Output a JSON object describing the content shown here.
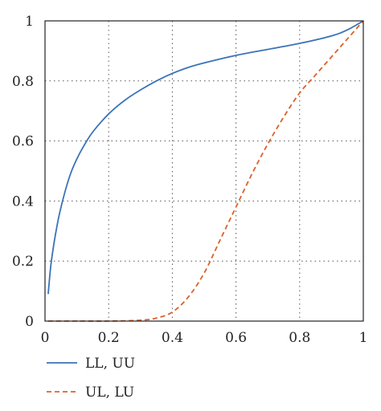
{
  "chart_data": {
    "type": "line",
    "title": "",
    "xlabel": "",
    "ylabel": "",
    "xlim": [
      0,
      1
    ],
    "ylim": [
      0,
      1
    ],
    "grid": true,
    "legend_position": "bottom-left",
    "x_ticks": [
      "0",
      "0.2",
      "0.4",
      "0.6",
      "0.8",
      "1"
    ],
    "y_ticks": [
      "0",
      "0.2",
      "0.4",
      "0.6",
      "0.8",
      "1"
    ],
    "series": [
      {
        "name": "LL, UU",
        "style": "solid",
        "color": "#3a73b8",
        "x": [
          0.01,
          0.02,
          0.04,
          0.06,
          0.08,
          0.1,
          0.12,
          0.15,
          0.2,
          0.25,
          0.3,
          0.35,
          0.4,
          0.45,
          0.5,
          0.6,
          0.7,
          0.8,
          0.9,
          0.95,
          1.0
        ],
        "y": [
          0.09,
          0.2,
          0.33,
          0.42,
          0.49,
          0.54,
          0.58,
          0.63,
          0.69,
          0.735,
          0.77,
          0.8,
          0.825,
          0.845,
          0.86,
          0.885,
          0.905,
          0.925,
          0.95,
          0.97,
          1.0
        ]
      },
      {
        "name": "UL, LU",
        "style": "dashed",
        "color": "#d9622b",
        "x": [
          0.01,
          0.1,
          0.2,
          0.3,
          0.35,
          0.4,
          0.45,
          0.5,
          0.55,
          0.6,
          0.65,
          0.7,
          0.75,
          0.8,
          0.85,
          0.9,
          0.95,
          1.0
        ],
        "y": [
          0.0,
          0.0,
          0.0,
          0.003,
          0.01,
          0.03,
          0.08,
          0.16,
          0.27,
          0.38,
          0.49,
          0.59,
          0.68,
          0.76,
          0.82,
          0.88,
          0.94,
          1.0
        ]
      }
    ]
  }
}
